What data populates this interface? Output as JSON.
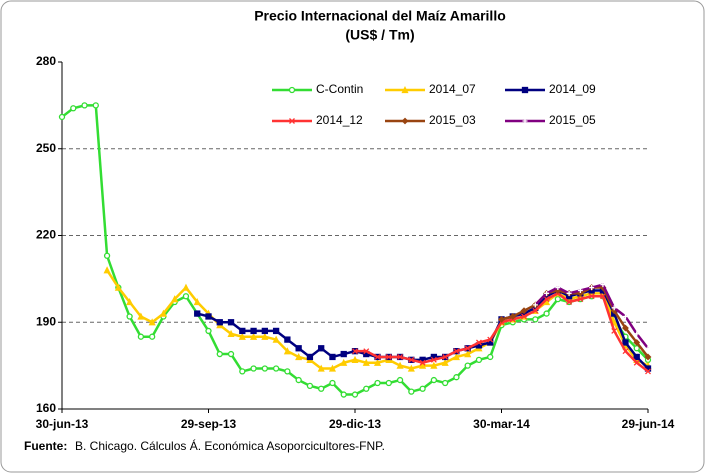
{
  "chart_data": {
    "type": "line",
    "title": "Precio Internacional del Maíz Amarillo",
    "subtitle": "(US$ / Tm)",
    "source_label": "Fuente:",
    "source_text": "B. Chicago. Cálculos Á. Económica Asoporcicultores-FNP.",
    "categories": [
      "30-jun-13",
      null,
      null,
      null,
      null,
      null,
      null,
      null,
      null,
      null,
      null,
      null,
      null,
      "29-sep-13",
      null,
      null,
      null,
      null,
      null,
      null,
      null,
      null,
      null,
      null,
      null,
      null,
      "29-dic-13",
      null,
      null,
      null,
      null,
      null,
      null,
      null,
      null,
      null,
      null,
      null,
      null,
      "30-mar-14",
      null,
      null,
      null,
      null,
      null,
      null,
      null,
      null,
      null,
      null,
      null,
      null,
      "29-jun-14"
    ],
    "ylim": [
      160,
      280
    ],
    "yticks": [
      160,
      190,
      220,
      250,
      280
    ],
    "grid": true,
    "series": [
      {
        "name": "C-Contin",
        "color": "#33dd33",
        "marker": "circle",
        "values": [
          261,
          264,
          265,
          265,
          213,
          202,
          192,
          185,
          185,
          192,
          197,
          199,
          193,
          187,
          179,
          179,
          173,
          174,
          174,
          174,
          173,
          170,
          168,
          167,
          169,
          165,
          165,
          167,
          169,
          169,
          170,
          166,
          167,
          170,
          169,
          171,
          175,
          177,
          178,
          189,
          190,
          191,
          191,
          193,
          198,
          197,
          198,
          199,
          199,
          191,
          185,
          181,
          177
        ]
      },
      {
        "name": "2014_07",
        "color": "#ffcc00",
        "marker": "triangle",
        "values": [
          null,
          null,
          null,
          null,
          208,
          202,
          197,
          192,
          190,
          193,
          198,
          202,
          197,
          193,
          189,
          186,
          185,
          185,
          185,
          184,
          180,
          178,
          177,
          174,
          174,
          176,
          177,
          176,
          176,
          177,
          175,
          174,
          175,
          175,
          176,
          178,
          179,
          181,
          183,
          190,
          191,
          192,
          194,
          197,
          200,
          198,
          199,
          200,
          200,
          190,
          182,
          177,
          175
        ]
      },
      {
        "name": "2014_09",
        "color": "#000080",
        "marker": "square",
        "values": [
          null,
          null,
          null,
          null,
          null,
          null,
          null,
          null,
          null,
          null,
          null,
          null,
          193,
          192,
          190,
          190,
          187,
          187,
          187,
          187,
          184,
          181,
          178,
          181,
          178,
          179,
          180,
          179,
          178,
          178,
          178,
          177,
          177,
          178,
          178,
          180,
          181,
          182,
          183,
          191,
          192,
          193,
          195,
          199,
          201,
          199,
          200,
          201,
          201,
          193,
          183,
          178,
          174
        ]
      },
      {
        "name": "2014_12",
        "color": "#ff3333",
        "marker": "x",
        "values": [
          null,
          null,
          null,
          null,
          null,
          null,
          null,
          null,
          null,
          null,
          null,
          null,
          null,
          null,
          null,
          null,
          null,
          null,
          null,
          null,
          null,
          null,
          null,
          null,
          null,
          null,
          180,
          180,
          178,
          178,
          178,
          177,
          176,
          177,
          178,
          180,
          181,
          183,
          184,
          190,
          191,
          192,
          194,
          198,
          200,
          197,
          198,
          199,
          199,
          187,
          180,
          176,
          173
        ]
      },
      {
        "name": "2015_03",
        "color": "#994411",
        "marker": "diamond",
        "values": [
          null,
          null,
          null,
          null,
          null,
          null,
          null,
          null,
          null,
          null,
          null,
          null,
          null,
          null,
          null,
          null,
          null,
          null,
          null,
          null,
          null,
          null,
          null,
          null,
          null,
          null,
          null,
          null,
          null,
          null,
          null,
          null,
          null,
          null,
          null,
          null,
          null,
          null,
          null,
          191,
          192,
          194,
          196,
          200,
          201,
          200,
          200,
          202,
          202,
          194,
          188,
          183,
          178
        ]
      },
      {
        "name": "2015_05",
        "color": "#800080",
        "marker": "plus",
        "values": [
          null,
          null,
          null,
          null,
          null,
          null,
          null,
          null,
          null,
          null,
          null,
          null,
          null,
          null,
          null,
          null,
          null,
          null,
          null,
          null,
          null,
          null,
          null,
          null,
          null,
          null,
          null,
          null,
          null,
          null,
          null,
          null,
          null,
          null,
          null,
          null,
          null,
          null,
          null,
          null,
          null,
          null,
          196,
          200,
          202,
          200,
          201,
          202,
          203,
          195,
          192,
          186,
          181
        ]
      }
    ]
  }
}
